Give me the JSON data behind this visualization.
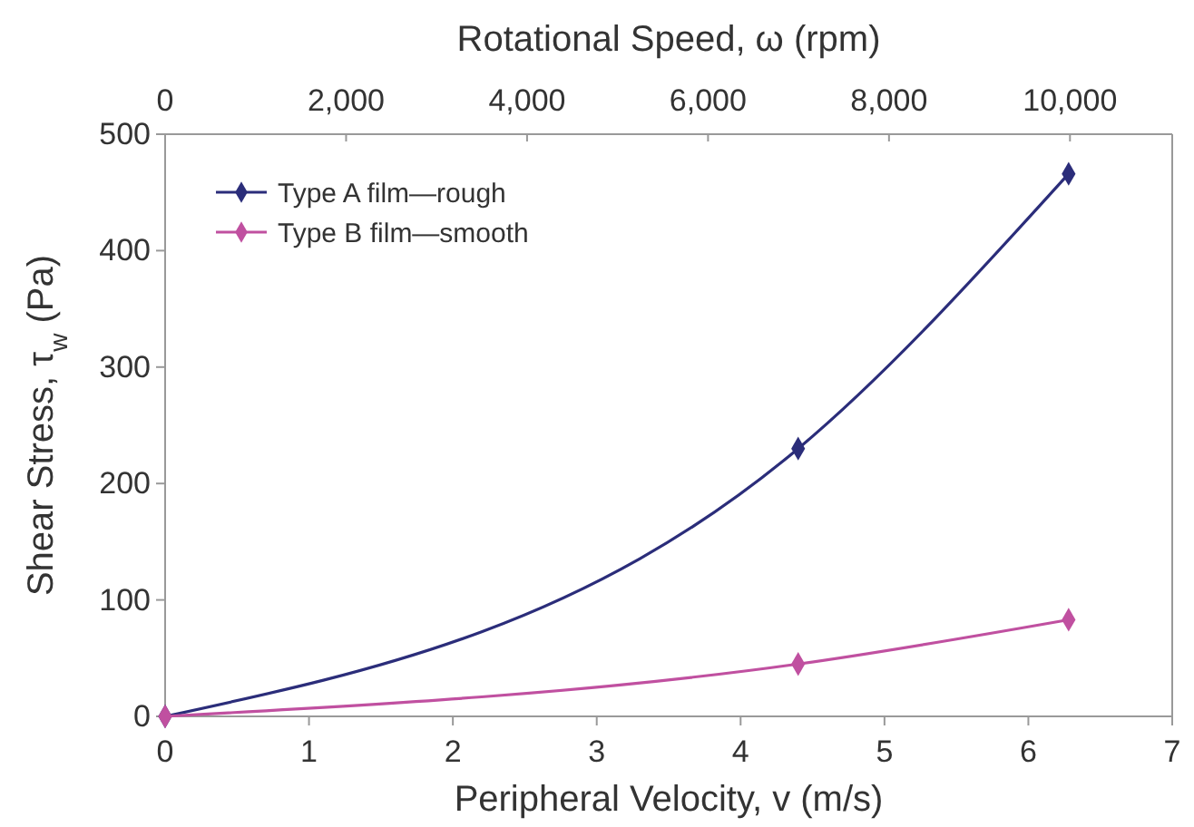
{
  "chart_data": {
    "type": "line",
    "xlabel": "Peripheral Velocity, v (m/s)",
    "ylabel": "Shear Stress, τ$_{w}$ (Pa)",
    "x2label": "Rotational Speed, ω (rpm)",
    "xlim": [
      0,
      7
    ],
    "xticks": [
      0,
      1,
      2,
      3,
      4,
      5,
      6,
      7
    ],
    "x2lim": [
      0,
      11130
    ],
    "x2ticks": [
      0,
      {
        "value": 2000,
        "label": "2,000"
      },
      {
        "value": 4000,
        "label": "4,000"
      },
      {
        "value": 6000,
        "label": "6,000"
      },
      {
        "value": 8000,
        "label": "8,000"
      },
      {
        "value": 10000,
        "label": "10,000"
      }
    ],
    "ylim": [
      0,
      500
    ],
    "yticks": [
      0,
      100,
      200,
      300,
      400,
      500
    ],
    "grid": false,
    "legend": "top left",
    "marker": "diamond",
    "line_style": "solid",
    "series": [
      {
        "name": "Type A film—rough",
        "color": "#2b2d7a",
        "x": [
          0,
          4.4,
          6.28
        ],
        "values": [
          0,
          230,
          466
        ]
      },
      {
        "name": "Type B film—smooth",
        "color": "#c050a0",
        "x": [
          0,
          4.4,
          6.28
        ],
        "values": [
          0,
          45,
          83
        ]
      }
    ]
  }
}
